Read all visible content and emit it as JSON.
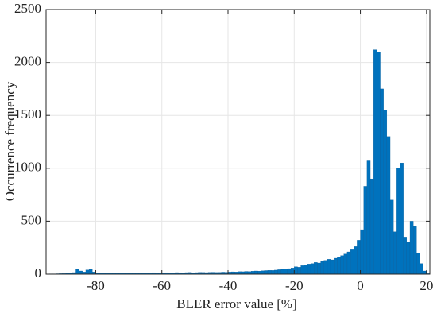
{
  "chart_data": {
    "type": "histogram",
    "xlabel": "BLER error value [%]",
    "ylabel": "Occurrence frequency",
    "color": "#0072bd",
    "grid": true,
    "xlim": [
      -95,
      21
    ],
    "ylim": [
      0,
      2500
    ],
    "xticks": [
      -80,
      -60,
      -40,
      -20,
      0,
      20
    ],
    "yticks": [
      0,
      500,
      1000,
      1500,
      2000,
      2500
    ],
    "bins": [
      -95,
      -94,
      -93,
      -92,
      -91,
      -90,
      -89,
      -88,
      -87,
      -86,
      -85,
      -84,
      -83,
      -82,
      -81,
      -80,
      -79,
      -78,
      -77,
      -76,
      -75,
      -74,
      -73,
      -72,
      -71,
      -70,
      -69,
      -68,
      -67,
      -66,
      -65,
      -64,
      -63,
      -62,
      -61,
      -60,
      -59,
      -58,
      -57,
      -56,
      -55,
      -54,
      -53,
      -52,
      -51,
      -50,
      -49,
      -48,
      -47,
      -46,
      -45,
      -44,
      -43,
      -42,
      -41,
      -40,
      -39,
      -38,
      -37,
      -36,
      -35,
      -34,
      -33,
      -32,
      -31,
      -30,
      -29,
      -28,
      -27,
      -26,
      -25,
      -24,
      -23,
      -22,
      -21,
      -20,
      -19,
      -18,
      -17,
      -16,
      -15,
      -14,
      -13,
      -12,
      -11,
      -10,
      -9,
      -8,
      -7,
      -6,
      -5,
      -4,
      -3,
      -2,
      -1,
      0,
      1,
      2,
      3,
      4,
      5,
      6,
      7,
      8,
      9,
      10,
      11,
      12,
      13,
      14,
      15,
      16,
      17,
      18,
      19,
      20,
      21
    ],
    "values": [
      2,
      3,
      3,
      4,
      5,
      6,
      8,
      10,
      15,
      45,
      30,
      20,
      40,
      45,
      20,
      12,
      11,
      13,
      12,
      10,
      11,
      12,
      13,
      11,
      10,
      12,
      13,
      12,
      11,
      10,
      12,
      13,
      14,
      12,
      11,
      13,
      14,
      12,
      13,
      15,
      14,
      13,
      15,
      16,
      14,
      15,
      17,
      16,
      15,
      17,
      18,
      16,
      17,
      19,
      18,
      20,
      22,
      21,
      24,
      23,
      26,
      25,
      28,
      30,
      29,
      32,
      34,
      36,
      35,
      38,
      42,
      45,
      48,
      52,
      58,
      70,
      65,
      80,
      85,
      95,
      100,
      110,
      105,
      120,
      130,
      140,
      135,
      150,
      160,
      175,
      190,
      210,
      230,
      260,
      320,
      420,
      830,
      1070,
      900,
      2120,
      2100,
      1750,
      1550,
      1300,
      700,
      400,
      1000,
      1050,
      350,
      300,
      500,
      450,
      200,
      100,
      30,
      5
    ]
  }
}
